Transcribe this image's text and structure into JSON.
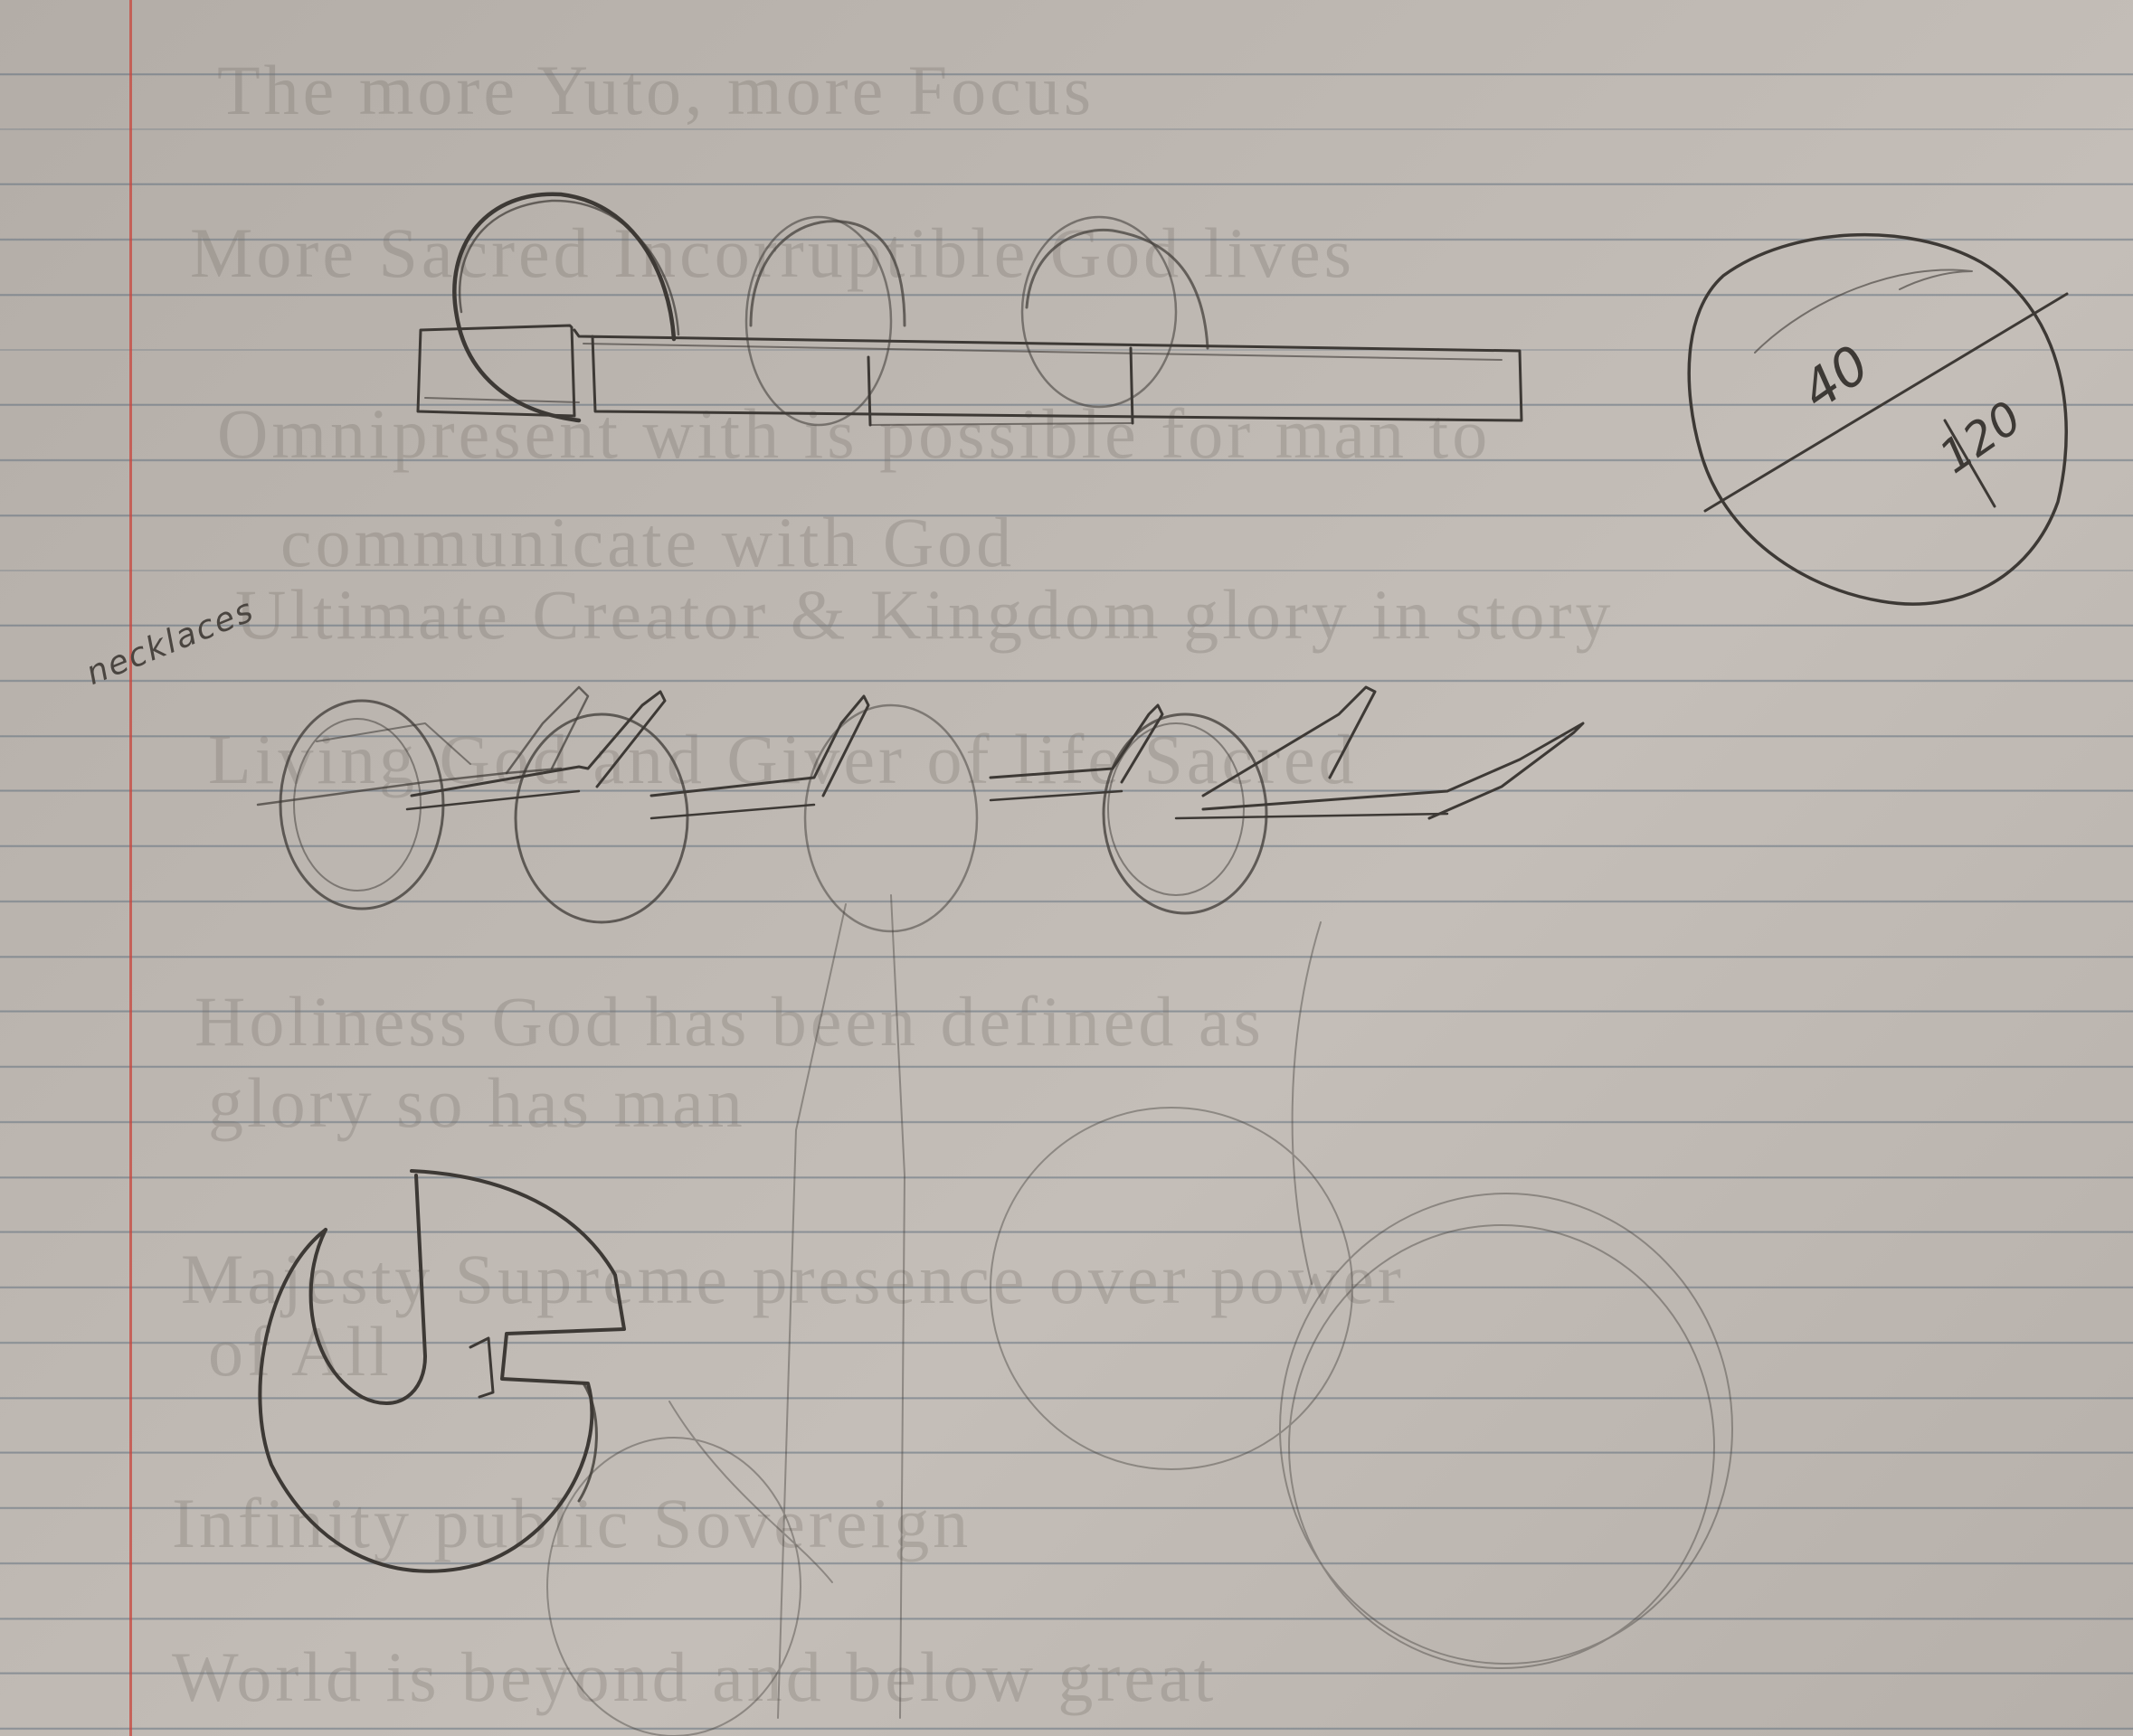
{
  "annotations": {
    "necklaces_label": "necklaces",
    "measure_top": "40",
    "measure_bottom": "120"
  },
  "background_text": [
    "The more Yuto, more Focus",
    "More Sacred Incorruptible God lives",
    "Omnipresent with is possible for man to",
    "communicate with God",
    "Ultimate Creator & Kingdom glory in story",
    "Living God and Giver of life Sacred",
    "Holiness God has been defined as",
    "glory so has man",
    "Majesty Supreme presence over power",
    "of All",
    "Infinity public Sovereign",
    "World is beyond and below great"
  ],
  "colors": {
    "paper": "#bcb6b0",
    "rule_line": "#5f6e7d",
    "margin_line": "#c8463c",
    "pencil": "#3d3935"
  }
}
